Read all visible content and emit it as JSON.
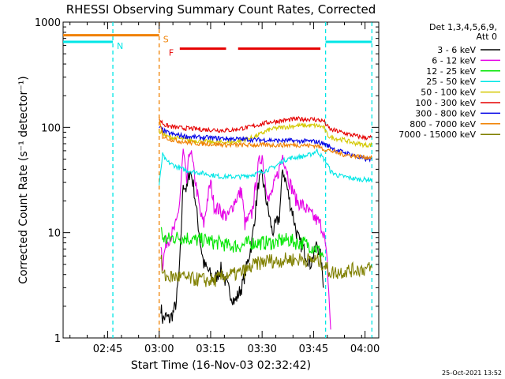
{
  "chart_data": {
    "type": "line",
    "title": "RHESSI Observing Summary Count Rates, Corrected",
    "xlabel": "Start Time (16-Nov-03 02:32:42)",
    "ylabel": "Corrected Count Rate (s⁻¹ detector⁻¹)",
    "y_scale": "log",
    "ylim": [
      1,
      1000
    ],
    "xlim_minutes_after_0232": [
      0,
      92
    ],
    "y_ticks": [
      {
        "value": 1,
        "label": "1"
      },
      {
        "value": 10,
        "label": "10"
      },
      {
        "value": 100,
        "label": "100"
      },
      {
        "value": 1000,
        "label": "1000"
      }
    ],
    "x_ticks": [
      {
        "t": 13,
        "label": "02:45"
      },
      {
        "t": 28,
        "label": "03:00"
      },
      {
        "t": 43,
        "label": "03:15"
      },
      {
        "t": 58,
        "label": "03:30"
      },
      {
        "t": 73,
        "label": "03:45"
      },
      {
        "t": 88,
        "label": "04:00"
      }
    ],
    "legend": {
      "header": [
        "Det 1,3,4,5,6,9,",
        "Att 0"
      ],
      "placement": "right",
      "entries": [
        {
          "label": "3 - 6 keV",
          "color": "#000000"
        },
        {
          "label": "6 - 12 keV",
          "color": "#e600e6"
        },
        {
          "label": "12 - 25 keV",
          "color": "#00e600"
        },
        {
          "label": "25 - 50 keV",
          "color": "#00e6e6"
        },
        {
          "label": "50 - 100 keV",
          "color": "#d4c800"
        },
        {
          "label": "100 - 300 keV",
          "color": "#e60000"
        },
        {
          "label": "300 - 800 keV",
          "color": "#0000e6"
        },
        {
          "label": "800 - 7000 keV",
          "color": "#f08000"
        },
        {
          "label": "7000 - 15000 keV",
          "color": "#808000"
        }
      ]
    },
    "flags": [
      {
        "label": "N",
        "color": "#00e6e6",
        "segments": [
          [
            0,
            14.5
          ],
          [
            76.5,
            90
          ]
        ],
        "value": 650
      },
      {
        "label": "S",
        "color": "#f08000",
        "segments": [
          [
            0,
            28
          ]
        ],
        "value": 750
      },
      {
        "label": "F",
        "color": "#e60000",
        "segments": [
          [
            34,
            47.5
          ],
          [
            51,
            75
          ]
        ],
        "value": 560
      }
    ],
    "markers": [
      {
        "t": 14.5,
        "color": "#00e6e6"
      },
      {
        "t": 28,
        "color": "#f08000"
      },
      {
        "t": 76.5,
        "color": "#00e6e6"
      },
      {
        "t": 90,
        "color": "#00e6e6"
      }
    ],
    "series": [
      {
        "name": "3 - 6 keV",
        "color": "#000000",
        "x": [
          28.5,
          29,
          30,
          31,
          32,
          33,
          34,
          35,
          36,
          37,
          38,
          39,
          40,
          41,
          42,
          44,
          46,
          48,
          50,
          52,
          53,
          55,
          57,
          58,
          59,
          60,
          61,
          63,
          64,
          65,
          66,
          67,
          68,
          69,
          70,
          71,
          72,
          73,
          74,
          75,
          76
        ],
        "y": [
          2,
          1.5,
          1.6,
          1.5,
          1.7,
          2.2,
          5,
          30,
          25,
          40,
          28,
          15,
          8,
          5,
          4.5,
          3.5,
          4.5,
          3,
          2.2,
          3,
          4,
          8,
          30,
          35,
          22,
          15,
          10,
          14,
          40,
          30,
          20,
          15,
          10,
          8,
          7,
          6,
          5,
          6,
          8,
          6,
          3
        ]
      },
      {
        "name": "6 - 12 keV",
        "color": "#e600e6",
        "x": [
          28.5,
          29,
          30,
          31,
          32,
          33,
          34,
          35,
          36,
          37,
          38,
          39,
          40,
          41,
          42,
          43,
          44,
          46,
          48,
          50,
          52,
          53,
          55,
          57,
          58,
          59,
          60,
          61,
          63,
          64,
          65,
          66,
          67,
          68,
          70,
          72,
          73,
          74,
          75,
          76,
          77,
          78
        ],
        "y": [
          8,
          5,
          8,
          9,
          10,
          12,
          20,
          60,
          30,
          65,
          40,
          25,
          15,
          12,
          20,
          30,
          18,
          16,
          14,
          20,
          25,
          12,
          15,
          45,
          55,
          30,
          20,
          25,
          40,
          55,
          42,
          30,
          25,
          20,
          18,
          15,
          14,
          13,
          12,
          10,
          5,
          1.2
        ]
      },
      {
        "name": "12 - 25 keV",
        "color": "#00e600",
        "x": [
          28.5,
          29,
          30,
          32,
          34,
          36,
          38,
          40,
          42,
          44,
          46,
          48,
          50,
          52,
          54,
          56,
          58,
          60,
          62,
          64,
          66,
          68,
          70,
          72,
          74,
          76
        ],
        "y": [
          11,
          9,
          8.5,
          9,
          9,
          9,
          8.5,
          8.5,
          8.5,
          8,
          8,
          7.5,
          7.5,
          7.5,
          8,
          8,
          8,
          8,
          8,
          8.5,
          8.5,
          8,
          8,
          7.5,
          7,
          6
        ]
      },
      {
        "name": "25 - 50 keV",
        "color": "#00e6e6",
        "x": [
          28,
          29,
          30,
          32,
          34,
          36,
          38,
          40,
          42,
          44,
          46,
          48,
          50,
          52,
          54,
          56,
          58,
          60,
          62,
          64,
          66,
          68,
          70,
          72,
          74,
          76,
          77,
          78,
          80,
          82,
          84,
          86,
          88,
          90
        ],
        "y": [
          28,
          55,
          48,
          44,
          41,
          39,
          38,
          37,
          36,
          35,
          34,
          34,
          34,
          34,
          35,
          36,
          38,
          40,
          43,
          48,
          51,
          52,
          53,
          55,
          60,
          50,
          45,
          38,
          35,
          34,
          33,
          32,
          32,
          32
        ]
      },
      {
        "name": "50 - 100 keV",
        "color": "#d4c800",
        "x": [
          28,
          29,
          30,
          32,
          34,
          36,
          38,
          40,
          42,
          44,
          46,
          48,
          50,
          52,
          54,
          56,
          58,
          60,
          62,
          64,
          66,
          68,
          70,
          72,
          74,
          76,
          77,
          78,
          80,
          82,
          84,
          86,
          88,
          90
        ],
        "y": [
          90,
          90,
          82,
          80,
          78,
          76,
          75,
          74,
          73,
          72,
          72,
          72,
          73,
          75,
          78,
          82,
          88,
          95,
          98,
          100,
          102,
          104,
          104,
          104,
          104,
          100,
          85,
          80,
          78,
          76,
          72,
          70,
          68,
          68
        ]
      },
      {
        "name": "100 - 300 keV",
        "color": "#e60000",
        "x": [
          28,
          29,
          30,
          32,
          34,
          36,
          38,
          40,
          42,
          44,
          46,
          48,
          50,
          52,
          54,
          56,
          58,
          60,
          62,
          64,
          66,
          68,
          70,
          72,
          74,
          76,
          77,
          78,
          80,
          82,
          84,
          86,
          88,
          90
        ],
        "y": [
          120,
          110,
          104,
          101,
          99,
          98,
          97,
          96,
          95,
          95,
          94,
          94,
          95,
          98,
          100,
          104,
          108,
          112,
          114,
          116,
          118,
          120,
          120,
          120,
          118,
          115,
          102,
          95,
          92,
          88,
          85,
          82,
          80,
          80
        ]
      },
      {
        "name": "300 - 800 keV",
        "color": "#0000e6",
        "x": [
          28,
          29,
          30,
          32,
          34,
          36,
          38,
          40,
          42,
          44,
          46,
          48,
          50,
          52,
          54,
          56,
          58,
          60,
          62,
          64,
          66,
          68,
          70,
          72,
          74,
          76,
          78,
          80,
          82,
          84,
          86,
          88,
          90
        ],
        "y": [
          100,
          95,
          90,
          86,
          84,
          82,
          81,
          80,
          80,
          79,
          79,
          78,
          78,
          77,
          77,
          76,
          76,
          76,
          75,
          75,
          75,
          74,
          74,
          74,
          73,
          70,
          65,
          60,
          58,
          55,
          52,
          50,
          50
        ]
      },
      {
        "name": "800 - 7000 keV",
        "color": "#f08000",
        "x": [
          28,
          29,
          30,
          32,
          34,
          36,
          38,
          40,
          42,
          44,
          46,
          48,
          50,
          52,
          54,
          56,
          58,
          60,
          62,
          64,
          66,
          68,
          70,
          72,
          74,
          76,
          78,
          80,
          82,
          84,
          86,
          88,
          90
        ],
        "y": [
          120,
          82,
          80,
          76,
          74,
          72,
          71,
          70,
          70,
          69,
          69,
          68,
          68,
          68,
          68,
          68,
          68,
          68,
          68,
          68,
          68,
          68,
          68,
          67,
          67,
          62,
          60,
          57,
          55,
          54,
          53,
          52,
          52
        ]
      },
      {
        "name": "7000 - 15000 keV",
        "color": "#808000",
        "x": [
          28.5,
          29,
          30,
          32,
          34,
          36,
          38,
          40,
          42,
          44,
          46,
          48,
          50,
          52,
          54,
          56,
          58,
          60,
          62,
          64,
          66,
          68,
          70,
          72,
          74,
          76,
          77,
          78,
          80,
          82,
          84,
          86,
          88,
          90
        ],
        "y": [
          6,
          4,
          3.8,
          3.8,
          3.8,
          3.7,
          3.6,
          3.6,
          3.5,
          3.5,
          3.8,
          4,
          4,
          4.2,
          4.5,
          5,
          5.2,
          5.5,
          5.3,
          5.5,
          5.6,
          5.5,
          5.6,
          5.5,
          5.5,
          5,
          4.5,
          4.2,
          4.2,
          4.3,
          4.4,
          4.5,
          4.5,
          4.6
        ]
      }
    ]
  },
  "footer": {
    "timestamp": "25-Oct-2021 13:52"
  }
}
